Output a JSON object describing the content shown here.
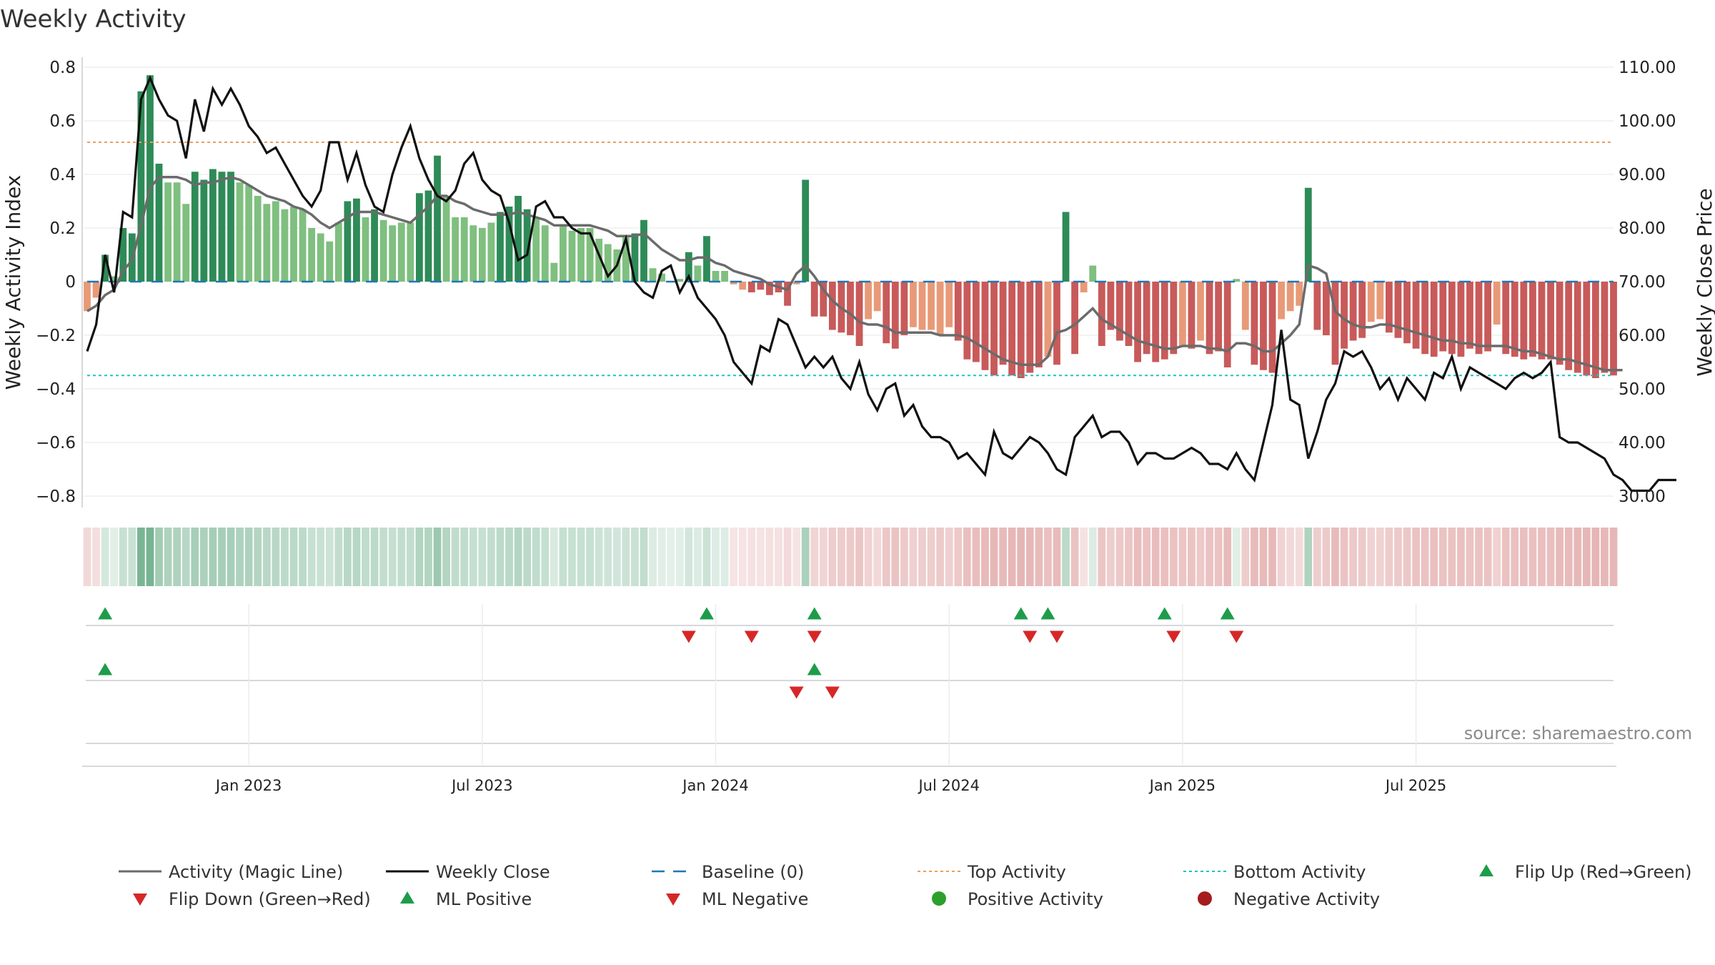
{
  "title": "Weekly Activity",
  "source": "source: sharemaestro.com",
  "colors": {
    "pos_dark": "#2e8b57",
    "pos_light": "#7fbf7f",
    "neg_dark": "#c85a5a",
    "neg_light": "#e89a78",
    "magic_line": "#6b6b6b",
    "close_line": "#111111",
    "baseline": "#1f77b4",
    "top_line": "#e8a060",
    "bottom_line": "#22c1c3",
    "flip_up": "#1e9c4b",
    "flip_down": "#d62728",
    "ml_pos": "#1e9c4b",
    "ml_neg": "#d62728",
    "pos_dot": "#2ca02c",
    "neg_dot": "#a51c1c"
  },
  "chart_data": {
    "type": "bar",
    "title": "Weekly Activity",
    "ylabel_left": "Weekly Activity Index",
    "ylabel_right": "Weekly Close Price",
    "ylim_left": [
      -0.85,
      0.85
    ],
    "ylim_right": [
      27.5,
      112.5
    ],
    "yticks_left": [
      {
        "v": 0.8,
        "label": "0.8"
      },
      {
        "v": 0.6,
        "label": "0.6"
      },
      {
        "v": 0.4,
        "label": "0.4"
      },
      {
        "v": 0.2,
        "label": "0.2"
      },
      {
        "v": 0,
        "label": "0"
      },
      {
        "v": -0.2,
        "label": "−0.2"
      },
      {
        "v": -0.4,
        "label": "−0.4"
      },
      {
        "v": -0.6,
        "label": "−0.6"
      },
      {
        "v": -0.8,
        "label": "−0.8"
      }
    ],
    "yticks_right": [
      {
        "v": 110,
        "label": "110.00"
      },
      {
        "v": 100,
        "label": "100.00"
      },
      {
        "v": 90,
        "label": "90.00"
      },
      {
        "v": 80,
        "label": "80.00"
      },
      {
        "v": 70,
        "label": "70.00"
      },
      {
        "v": 60,
        "label": "60.00"
      },
      {
        "v": 50,
        "label": "50.00"
      },
      {
        "v": 40,
        "label": "40.00"
      },
      {
        "v": 30,
        "label": "30.00"
      }
    ],
    "xticks": [
      {
        "week": 18,
        "label": "Jan 2023"
      },
      {
        "week": 44,
        "label": "Jul 2023"
      },
      {
        "week": 70,
        "label": "Jan 2024"
      },
      {
        "week": 96,
        "label": "Jul 2024"
      },
      {
        "week": 122,
        "label": "Jan 2025"
      },
      {
        "week": 148,
        "label": "Jul 2025"
      }
    ],
    "top_activity": 0.52,
    "bottom_activity": -0.35,
    "baseline": 0,
    "activity": [
      -0.11,
      -0.06,
      0.1,
      0.02,
      0.2,
      0.18,
      0.71,
      0.77,
      0.44,
      0.37,
      0.37,
      0.29,
      0.41,
      0.38,
      0.42,
      0.41,
      0.41,
      0.37,
      0.36,
      0.32,
      0.29,
      0.3,
      0.27,
      0.28,
      0.27,
      0.2,
      0.18,
      0.15,
      0.22,
      0.3,
      0.31,
      0.24,
      0.27,
      0.23,
      0.21,
      0.22,
      0.22,
      0.33,
      0.34,
      0.47,
      0.32,
      0.24,
      0.24,
      0.21,
      0.2,
      0.22,
      0.26,
      0.28,
      0.32,
      0.27,
      0.24,
      0.21,
      0.07,
      0.21,
      0.19,
      0.2,
      0.2,
      0.16,
      0.14,
      0.12,
      0.17,
      0.18,
      0.23,
      0.05,
      0.03,
      0.0,
      0.01,
      0.11,
      0.06,
      0.17,
      0.04,
      0.04,
      -0.01,
      -0.03,
      -0.04,
      -0.03,
      -0.05,
      -0.04,
      -0.09,
      -0.01,
      0.38,
      -0.13,
      -0.13,
      -0.18,
      -0.19,
      -0.2,
      -0.24,
      -0.14,
      -0.11,
      -0.23,
      -0.25,
      -0.2,
      -0.17,
      -0.18,
      -0.18,
      -0.2,
      -0.17,
      -0.22,
      -0.29,
      -0.3,
      -0.33,
      -0.35,
      -0.31,
      -0.35,
      -0.36,
      -0.34,
      -0.32,
      -0.28,
      -0.31,
      0.26,
      -0.27,
      -0.04,
      0.06,
      -0.24,
      -0.18,
      -0.22,
      -0.24,
      -0.3,
      -0.27,
      -0.3,
      -0.29,
      -0.27,
      -0.24,
      -0.25,
      -0.22,
      -0.27,
      -0.26,
      -0.32,
      0.01,
      -0.18,
      -0.31,
      -0.33,
      -0.34,
      -0.14,
      -0.11,
      -0.09,
      0.35,
      -0.18,
      -0.2,
      -0.31,
      -0.25,
      -0.22,
      -0.21,
      -0.15,
      -0.14,
      -0.19,
      -0.21,
      -0.23,
      -0.25,
      -0.27,
      -0.28,
      -0.26,
      -0.27,
      -0.28,
      -0.25,
      -0.27,
      -0.26,
      -0.16,
      -0.27,
      -0.28,
      -0.29,
      -0.28,
      -0.29,
      -0.29,
      -0.31,
      -0.33,
      -0.34,
      -0.35,
      -0.36,
      -0.34,
      -0.35
    ],
    "magic_line": [
      -0.11,
      -0.09,
      -0.05,
      -0.03,
      0.04,
      0.08,
      0.21,
      0.35,
      0.39,
      0.39,
      0.39,
      0.38,
      0.36,
      0.37,
      0.37,
      0.38,
      0.39,
      0.38,
      0.36,
      0.34,
      0.32,
      0.31,
      0.3,
      0.28,
      0.27,
      0.25,
      0.22,
      0.2,
      0.22,
      0.24,
      0.26,
      0.26,
      0.26,
      0.25,
      0.24,
      0.23,
      0.22,
      0.25,
      0.28,
      0.32,
      0.32,
      0.3,
      0.29,
      0.27,
      0.26,
      0.25,
      0.25,
      0.25,
      0.26,
      0.25,
      0.24,
      0.23,
      0.21,
      0.21,
      0.21,
      0.21,
      0.21,
      0.2,
      0.19,
      0.17,
      0.17,
      0.17,
      0.18,
      0.15,
      0.12,
      0.1,
      0.08,
      0.08,
      0.09,
      0.09,
      0.07,
      0.06,
      0.04,
      0.03,
      0.02,
      0.01,
      -0.01,
      -0.02,
      -0.03,
      0.03,
      0.06,
      0.02,
      -0.03,
      -0.07,
      -0.1,
      -0.12,
      -0.15,
      -0.16,
      -0.16,
      -0.17,
      -0.19,
      -0.19,
      -0.19,
      -0.19,
      -0.19,
      -0.2,
      -0.2,
      -0.2,
      -0.21,
      -0.23,
      -0.25,
      -0.27,
      -0.29,
      -0.3,
      -0.31,
      -0.31,
      -0.31,
      -0.28,
      -0.19,
      -0.18,
      -0.16,
      -0.13,
      -0.1,
      -0.14,
      -0.16,
      -0.18,
      -0.2,
      -0.22,
      -0.23,
      -0.24,
      -0.25,
      -0.25,
      -0.24,
      -0.24,
      -0.24,
      -0.25,
      -0.25,
      -0.26,
      -0.23,
      -0.23,
      -0.24,
      -0.26,
      -0.26,
      -0.23,
      -0.2,
      -0.16,
      0.06,
      0.05,
      0.03,
      -0.11,
      -0.14,
      -0.16,
      -0.17,
      -0.17,
      -0.16,
      -0.16,
      -0.17,
      -0.18,
      -0.19,
      -0.2,
      -0.21,
      -0.22,
      -0.22,
      -0.23,
      -0.23,
      -0.24,
      -0.24,
      -0.24,
      -0.24,
      -0.25,
      -0.26,
      -0.26,
      -0.27,
      -0.28,
      -0.29,
      -0.29,
      -0.3,
      -0.31,
      -0.32,
      -0.33,
      -0.33,
      -0.33
    ],
    "weekly_close": [
      57,
      62,
      75,
      68,
      83,
      82,
      104,
      108,
      104,
      101,
      100,
      93,
      104,
      98,
      106,
      103,
      106,
      103,
      99,
      97,
      94,
      95,
      92,
      89,
      86,
      84,
      87,
      96,
      96,
      89,
      94,
      88,
      84,
      83,
      90,
      95,
      99,
      93,
      89,
      86,
      85,
      87,
      92,
      94,
      89,
      87,
      86,
      81,
      74,
      75,
      84,
      85,
      82,
      82,
      80,
      79,
      79,
      75,
      71,
      73,
      78,
      70,
      68,
      67,
      72,
      73,
      68,
      71,
      67,
      65,
      63,
      60,
      55,
      53,
      51,
      58,
      57,
      63,
      62,
      58,
      54,
      56,
      54,
      56,
      52,
      50,
      55,
      49,
      46,
      50,
      51,
      45,
      47,
      43,
      41,
      41,
      40,
      37,
      38,
      36,
      34,
      42,
      38,
      37,
      39,
      41,
      40,
      38,
      35,
      34,
      41,
      43,
      45,
      41,
      42,
      42,
      40,
      36,
      38,
      38,
      37,
      37,
      38,
      39,
      38,
      36,
      36,
      35,
      38,
      35,
      33,
      40,
      47,
      61,
      48,
      47,
      37,
      42,
      48,
      51,
      57,
      56,
      57,
      54,
      50,
      52,
      48,
      52,
      50,
      48,
      53,
      52,
      56,
      50,
      54,
      53,
      52,
      51,
      50,
      52,
      53,
      52,
      53,
      55,
      41,
      40,
      40,
      39,
      38,
      37,
      34,
      33,
      31,
      31,
      31,
      33,
      33,
      33
    ]
  },
  "signals": {
    "flip_up": [
      2,
      69,
      81,
      104,
      107,
      120,
      127
    ],
    "flip_down": [
      67,
      74,
      81,
      105,
      108,
      121,
      128
    ],
    "ml_positive": [
      2,
      81
    ],
    "ml_negative": [
      79,
      83
    ]
  },
  "legend": [
    {
      "key": "magic",
      "label": "Activity (Magic Line)"
    },
    {
      "key": "close",
      "label": "Weekly Close"
    },
    {
      "key": "baseline",
      "label": "Baseline (0)"
    },
    {
      "key": "top",
      "label": "Top Activity"
    },
    {
      "key": "bottom",
      "label": "Bottom Activity"
    },
    {
      "key": "flipup",
      "label": "Flip Up (Red→Green)"
    },
    {
      "key": "flipdown",
      "label": "Flip Down (Green→Red)"
    },
    {
      "key": "mlpos",
      "label": "ML Positive"
    },
    {
      "key": "mlneg",
      "label": "ML Negative"
    },
    {
      "key": "posdot",
      "label": "Positive Activity"
    },
    {
      "key": "negdot",
      "label": "Negative Activity"
    }
  ]
}
